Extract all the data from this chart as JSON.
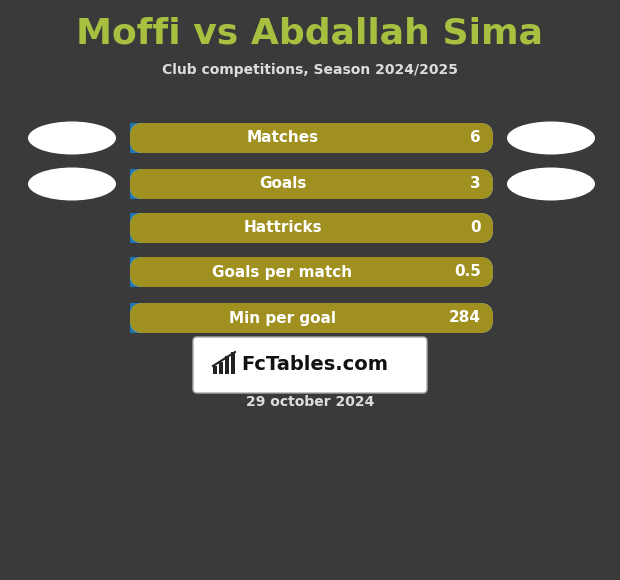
{
  "title": "Moffi vs Abdallah Sima",
  "subtitle": "Club competitions, Season 2024/2025",
  "date_text": "29 october 2024",
  "background_color": "#3a3a3a",
  "title_color": "#a8c040",
  "subtitle_color": "#dddddd",
  "date_color": "#dddddd",
  "rows": [
    {
      "label": "Matches",
      "value": "6"
    },
    {
      "label": "Goals",
      "value": "3"
    },
    {
      "label": "Hattricks",
      "value": "0"
    },
    {
      "label": "Goals per match",
      "value": "0.5"
    },
    {
      "label": "Min per goal",
      "value": "284"
    }
  ],
  "bar_left_color": "#a09020",
  "bar_right_color": "#87ceeb",
  "bar_text_color": "#ffffff",
  "ellipse_color": "#ffffff",
  "logo_box_color": "#ffffff",
  "logo_text_color": "#111111"
}
